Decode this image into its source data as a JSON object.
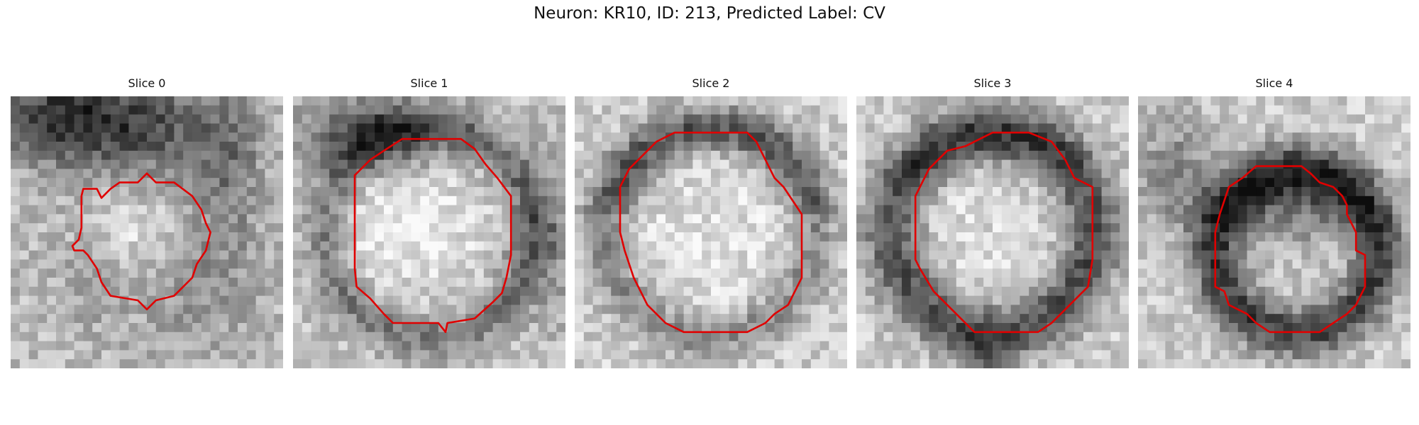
{
  "figure": {
    "title": "Neuron: KR10, ID: 213, Predicted Label: CV"
  },
  "slices": [
    {
      "label": "Slice 0",
      "contour_color": "#e00000"
    },
    {
      "label": "Slice 1",
      "contour_color": "#e00000"
    },
    {
      "label": "Slice 2",
      "contour_color": "#e00000"
    },
    {
      "label": "Slice 3",
      "contour_color": "#e00000"
    },
    {
      "label": "Slice 4",
      "contour_color": "#e00000"
    }
  ]
}
